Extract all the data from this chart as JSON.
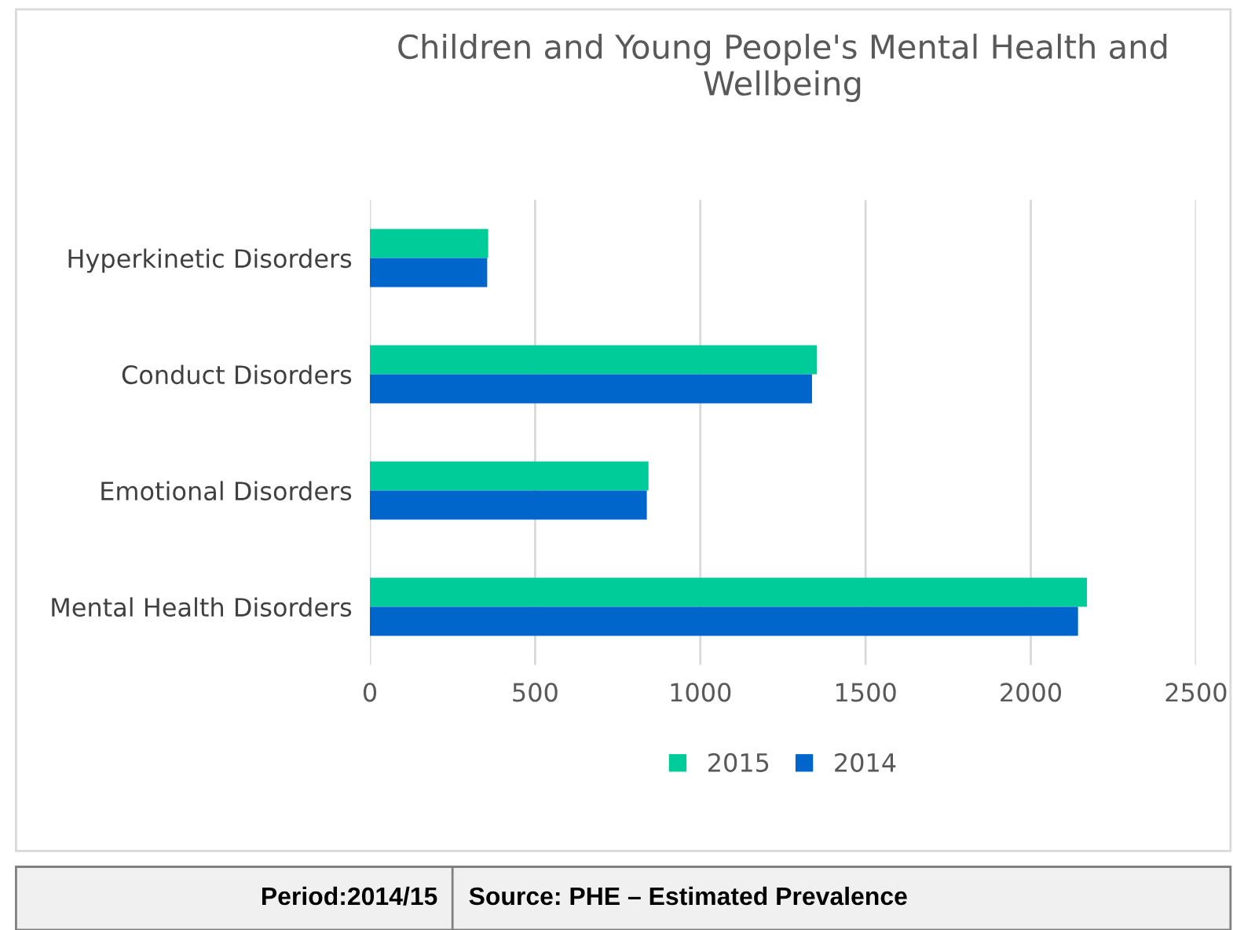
{
  "chart_data": {
    "type": "bar",
    "orientation": "horizontal",
    "title": "Children and Young People's Mental Health and\nWellbeing",
    "categories": [
      "Hyperkinetic Disorders",
      "Conduct Disorders",
      "Emotional Disorders",
      "Mental Health Disorders"
    ],
    "series": [
      {
        "name": "2015",
        "color": "#00cc99",
        "values": [
          358,
          1353,
          843,
          2170
        ]
      },
      {
        "name": "2014",
        "color": "#0066cc",
        "values": [
          355,
          1338,
          838,
          2143
        ]
      }
    ],
    "xlim": [
      0,
      2500
    ],
    "xticks": [
      0,
      500,
      1000,
      1500,
      2000,
      2500
    ],
    "grid": "x",
    "legend": "bottom",
    "annotations": [
      "Period:2014/15",
      "Source: PHE – Estimated Prevalence"
    ]
  }
}
